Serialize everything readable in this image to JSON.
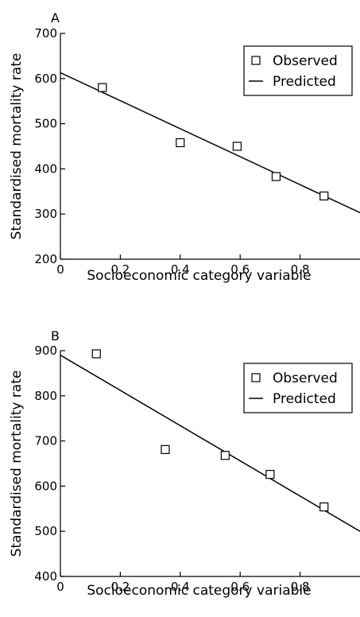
{
  "chart_data": [
    {
      "type": "scatter",
      "panel_label": "A",
      "xlabel": "Socioeconomic category variable",
      "ylabel": "Standardised mortality rate",
      "xlim": [
        0,
        1.0
      ],
      "ylim": [
        200,
        700
      ],
      "xticks": [
        0,
        0.2,
        0.4,
        0.6,
        0.8
      ],
      "xtick_labels": [
        "0",
        "0.2",
        "0.4",
        "0.6",
        "0.8"
      ],
      "yticks": [
        200,
        300,
        400,
        500,
        600,
        700
      ],
      "ytick_labels": [
        "200",
        "300",
        "400",
        "500",
        "600",
        "700"
      ],
      "legend_position": "top-right",
      "legend": [
        "Observed",
        "Predicted"
      ],
      "series": [
        {
          "name": "Observed",
          "x": [
            0.14,
            0.4,
            0.59,
            0.72,
            0.88
          ],
          "y": [
            580,
            458,
            450,
            383,
            340
          ]
        },
        {
          "name": "Predicted",
          "x": [
            0,
            1.0
          ],
          "y": [
            613,
            303
          ]
        }
      ]
    },
    {
      "type": "scatter",
      "panel_label": "B",
      "xlabel": "Socioeconomic category variable",
      "ylabel": "Standardised mortality rate",
      "xlim": [
        0,
        1.0
      ],
      "ylim": [
        400,
        900
      ],
      "xticks": [
        0,
        0.2,
        0.4,
        0.6,
        0.8
      ],
      "xtick_labels": [
        "0",
        "0.2",
        "0.4",
        "0.6",
        "0.8"
      ],
      "yticks": [
        400,
        500,
        600,
        700,
        800,
        900
      ],
      "ytick_labels": [
        "400",
        "500",
        "600",
        "700",
        "800",
        "900"
      ],
      "legend_position": "top-right",
      "legend": [
        "Observed",
        "Predicted"
      ],
      "series": [
        {
          "name": "Observed",
          "x": [
            0.12,
            0.35,
            0.55,
            0.7,
            0.88
          ],
          "y": [
            893,
            681,
            668,
            626,
            554
          ]
        },
        {
          "name": "Predicted",
          "x": [
            0,
            1.0
          ],
          "y": [
            890,
            500
          ]
        }
      ]
    }
  ]
}
